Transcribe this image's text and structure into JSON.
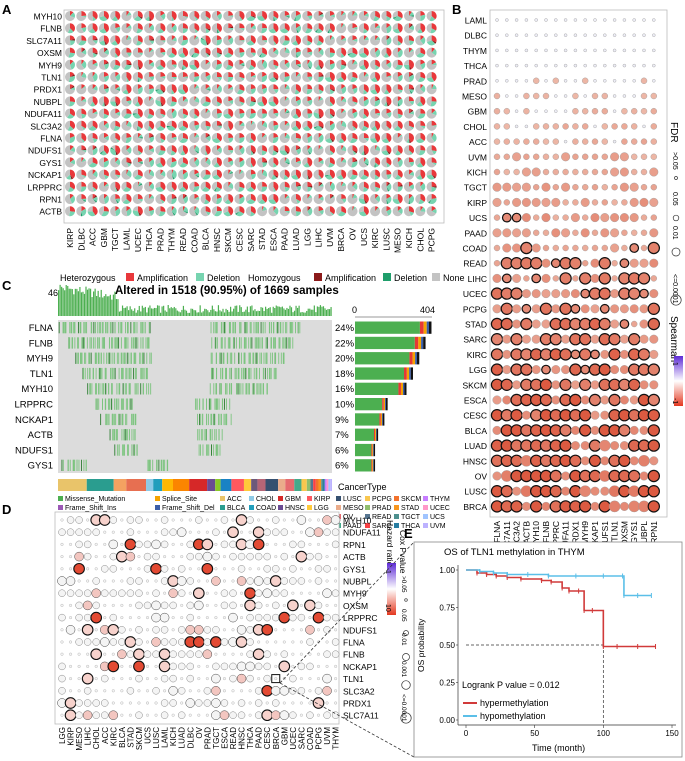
{
  "panel_labels": [
    "A",
    "B",
    "C",
    "D",
    "E"
  ],
  "panel_a": {
    "genes": [
      "MYH10",
      "FLNB",
      "SLC7A11",
      "OXSM",
      "MYH9",
      "TLN1",
      "PRDX1",
      "NUBPL",
      "NDUFA11",
      "SLC3A2",
      "FLNA",
      "NDUFS1",
      "GYS1",
      "NCKAP1",
      "LRPPRC",
      "RPN1",
      "ACTB"
    ],
    "cancers": [
      "KIRP",
      "DLBC",
      "ACC",
      "GBM",
      "TGCT",
      "LAML",
      "UCEC",
      "THCA",
      "PRAD",
      "THYM",
      "READ",
      "COAD",
      "BLCA",
      "HNSC",
      "SKCM",
      "CESC",
      "SARC",
      "STAD",
      "ESCA",
      "PAAD",
      "LUAD",
      "LGG",
      "LIHC",
      "UVM",
      "BRCA",
      "OV",
      "UCS",
      "KIRC",
      "LUSC",
      "MESO",
      "KICH",
      "CHOL",
      "PCPG"
    ],
    "legend_het": "Heterozygous",
    "legend_hom": "Homozygous",
    "legend_amp": "Amplification",
    "legend_del": "Deletion",
    "legend_none": "None",
    "colors": {
      "het_amp": "#e8383b",
      "het_del": "#77d4b0",
      "hom_amp": "#8b1a1a",
      "hom_del": "#1f9e6b",
      "none": "#c3c3c3"
    }
  },
  "panel_b": {
    "cancers": [
      "LAML",
      "DLBC",
      "THYM",
      "THCA",
      "PRAD",
      "MESO",
      "GBM",
      "CHOL",
      "ACC",
      "UVM",
      "KICH",
      "TGCT",
      "KIRP",
      "UCS",
      "PAAD",
      "COAD",
      "READ",
      "LIHC",
      "UCEC",
      "PCPG",
      "STAD",
      "SARC",
      "KIRC",
      "LGG",
      "SKCM",
      "ESCA",
      "CESC",
      "BLCA",
      "LUAD",
      "HNSC",
      "OV",
      "LUSC",
      "BRCA"
    ],
    "genes": [
      "FLNA",
      "SLC7A11",
      "SLC3A2",
      "ACTB",
      "MYH10",
      "FLNB",
      "LRPPRC",
      "NDUFA11",
      "PRDX1",
      "MYH9",
      "NCKAP1",
      "NDUFS1",
      "TLN1",
      "OXSM",
      "GYS1",
      "NUBPL",
      "RPN1"
    ],
    "fdr_title": "FDR",
    "fdr_levels": [
      ">0.05",
      "0.05",
      "0.01",
      "<=0.0001"
    ],
    "spearman_title": "Spearman",
    "spearman_max": "1",
    "spearman_min": "-1"
  },
  "panel_c": {
    "top_max": "46",
    "title": "Altered in 1518 (90.95%) of 1669 samples",
    "bar_axis_min": "0",
    "bar_axis_max": "404",
    "genes": [
      "FLNA",
      "FLNB",
      "MYH9",
      "TLN1",
      "MYH10",
      "LRPPRC",
      "NCKAP1",
      "ACTB",
      "NDUFS1",
      "GYS1"
    ],
    "percents": [
      "24%",
      "22%",
      "20%",
      "18%",
      "16%",
      "10%",
      "9%",
      "7%",
      "6%",
      "6%"
    ],
    "bar_values": [
      396,
      365,
      332,
      299,
      265,
      166,
      149,
      116,
      100,
      100
    ],
    "cancer_type_label": "CancerType",
    "mutation_legend": [
      "Missense_Mutation",
      "Splice_Site",
      "Frame_Shift_Ins",
      "Frame_Shift_Del",
      "Nonsense_Mutation",
      "In_Frame_Ins",
      "In_Frame_Del",
      "Multi_Hit"
    ],
    "mutation_colors": [
      "#4caf50",
      "#f4a300",
      "#9b59b6",
      "#3b5ea8",
      "#e53935",
      "#fce36b",
      "#c99b4a",
      "#111111"
    ],
    "cancer_legend": [
      "ACC",
      "BLCA",
      "BRCA",
      "CESC",
      "CHOL",
      "COAD",
      "DLBC",
      "ESCA",
      "GBM",
      "HNSC",
      "KICH",
      "KIRC",
      "KIRP",
      "LGG",
      "LIHC",
      "LUAD",
      "LUSC",
      "MESO",
      "OV",
      "PAAD",
      "PCPG",
      "PRAD",
      "READ",
      "SARC",
      "SKCM",
      "STAD",
      "TGCT",
      "THCA",
      "THYM",
      "UCEC",
      "UCS",
      "UVM"
    ],
    "cancer_colors": [
      "#e9c46a",
      "#2a9d8f",
      "#f4a261",
      "#e76f51",
      "#8ecae6",
      "#219ebc",
      "#ffb703",
      "#fb8500",
      "#d62828",
      "#6a4c93",
      "#8ac926",
      "#1982c4",
      "#ff595e",
      "#ffca3a",
      "#6d597a",
      "#b56576",
      "#355070",
      "#eaac8b",
      "#e56b6f",
      "#43aa8b",
      "#f9c74f",
      "#90be6d",
      "#577590",
      "#f94144",
      "#f3722c",
      "#f8961e",
      "#4d908e",
      "#277da1",
      "#c77dff",
      "#ff99c8",
      "#a0c4ff",
      "#bdb2ff"
    ]
  },
  "panel_d": {
    "genes": [
      "MYH10",
      "NDUFA11",
      "RPN1",
      "ACTB",
      "GYS1",
      "NUBPL",
      "MYH9",
      "OXSM",
      "LRPPRC",
      "NDUFS1",
      "FLNA",
      "FLNB",
      "NCKAP1",
      "TLN1",
      "SLC3A2",
      "PRDX1",
      "SLC7A11"
    ],
    "cancers": [
      "LGG",
      "KIRP",
      "MESO",
      "LIHC",
      "CHOL",
      "ACC",
      "KIRC",
      "BLCA",
      "STAD",
      "SKCM",
      "UCS",
      "LUSC",
      "LAML",
      "KICH",
      "LUAD",
      "DLBC",
      "OV",
      "PRAD",
      "TGCT",
      "ESCA",
      "READ",
      "HNSC",
      "THCA",
      "PAAD",
      "CESC",
      "BRCA",
      "GBM",
      "UCEC",
      "SARC",
      "COAD",
      "PCPG",
      "UVM",
      "THYM"
    ],
    "hazard_title": "Hazard ratio",
    "hazard_max": "10",
    "hazard_min": "1",
    "cox_title": "Cox Pvalue",
    "cox_levels": [
      ">0.05",
      "0.05",
      "0.01",
      "0.001",
      "<=0.0001"
    ]
  },
  "panel_e": {
    "title": "OS of TLN1 methylation in THYM",
    "ylabel": "OS probability",
    "xlabel": "Time (month)",
    "y_ticks": [
      "0.00",
      "0.25",
      "0.50",
      "0.75",
      "1.00"
    ],
    "x_ticks": [
      "0",
      "50",
      "100",
      "150"
    ],
    "pvalue_text": "Logrank P value = 0.012",
    "legend": [
      "hypermethylation",
      "hypomethylation"
    ],
    "colors": {
      "hyper": "#d13a3a",
      "hypo": "#5bbfe8"
    }
  },
  "chart_data": [
    {
      "type": "line",
      "title": "OS of TLN1 methylation in THYM",
      "xlabel": "Time (month)",
      "ylabel": "OS probability",
      "xlim": [
        0,
        150
      ],
      "ylim": [
        0,
        1
      ],
      "series": [
        {
          "name": "hypermethylation",
          "x": [
            0,
            8,
            15,
            22,
            30,
            40,
            55,
            62,
            70,
            75,
            82,
            86,
            92,
            100,
            110,
            125,
            138
          ],
          "y": [
            1.0,
            0.98,
            0.97,
            0.96,
            0.95,
            0.94,
            0.93,
            0.92,
            0.88,
            0.86,
            0.86,
            0.73,
            0.73,
            0.49,
            0.49,
            0.49,
            0.49
          ]
        },
        {
          "name": "hypomethylation",
          "x": [
            0,
            10,
            20,
            30,
            45,
            60,
            80,
            100,
            114,
            115,
            125,
            135
          ],
          "y": [
            1.0,
            0.99,
            0.98,
            0.97,
            0.97,
            0.96,
            0.96,
            0.96,
            0.96,
            0.83,
            0.83,
            0.83
          ]
        }
      ]
    },
    {
      "type": "bar",
      "title": "Altered in 1518 (90.95%) of 1669 samples",
      "categories": [
        "FLNA",
        "FLNB",
        "MYH9",
        "TLN1",
        "MYH10",
        "LRPPRC",
        "NCKAP1",
        "ACTB",
        "NDUFS1",
        "GYS1"
      ],
      "values": [
        396,
        365,
        332,
        299,
        265,
        166,
        149,
        116,
        100,
        100
      ],
      "xlim": [
        0,
        404
      ]
    }
  ]
}
